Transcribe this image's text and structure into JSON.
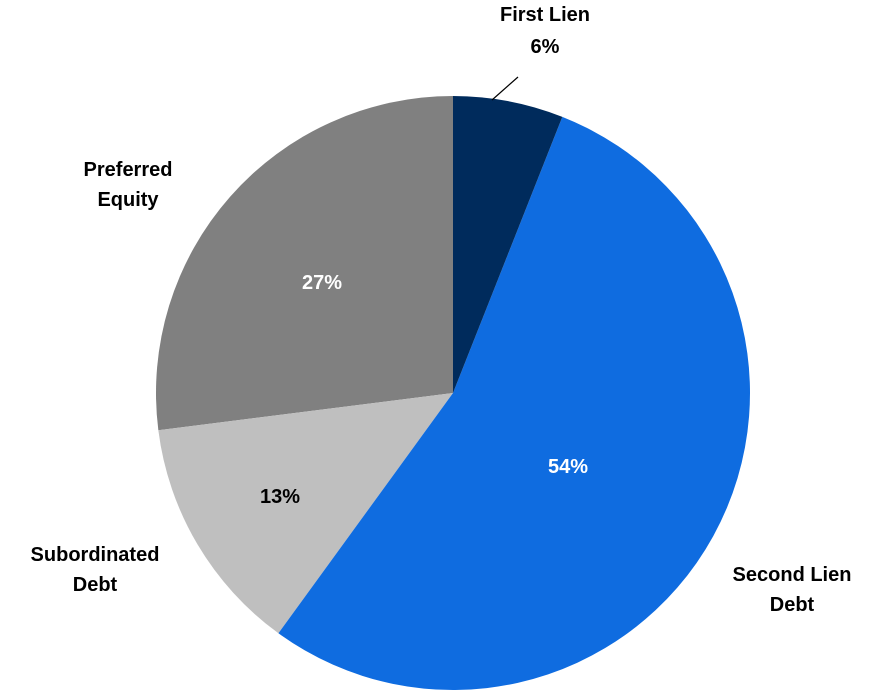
{
  "chart_data": {
    "type": "pie",
    "categories": [
      "First Lien",
      "Second Lien Debt",
      "Subordinated Debt",
      "Preferred Equity"
    ],
    "values": [
      6,
      54,
      13,
      27
    ],
    "value_labels": [
      "6%",
      "54%",
      "13%",
      "27%"
    ],
    "colors": [
      "#002b5c",
      "#0f6ce0",
      "#bfbfbf",
      "#808080"
    ]
  }
}
